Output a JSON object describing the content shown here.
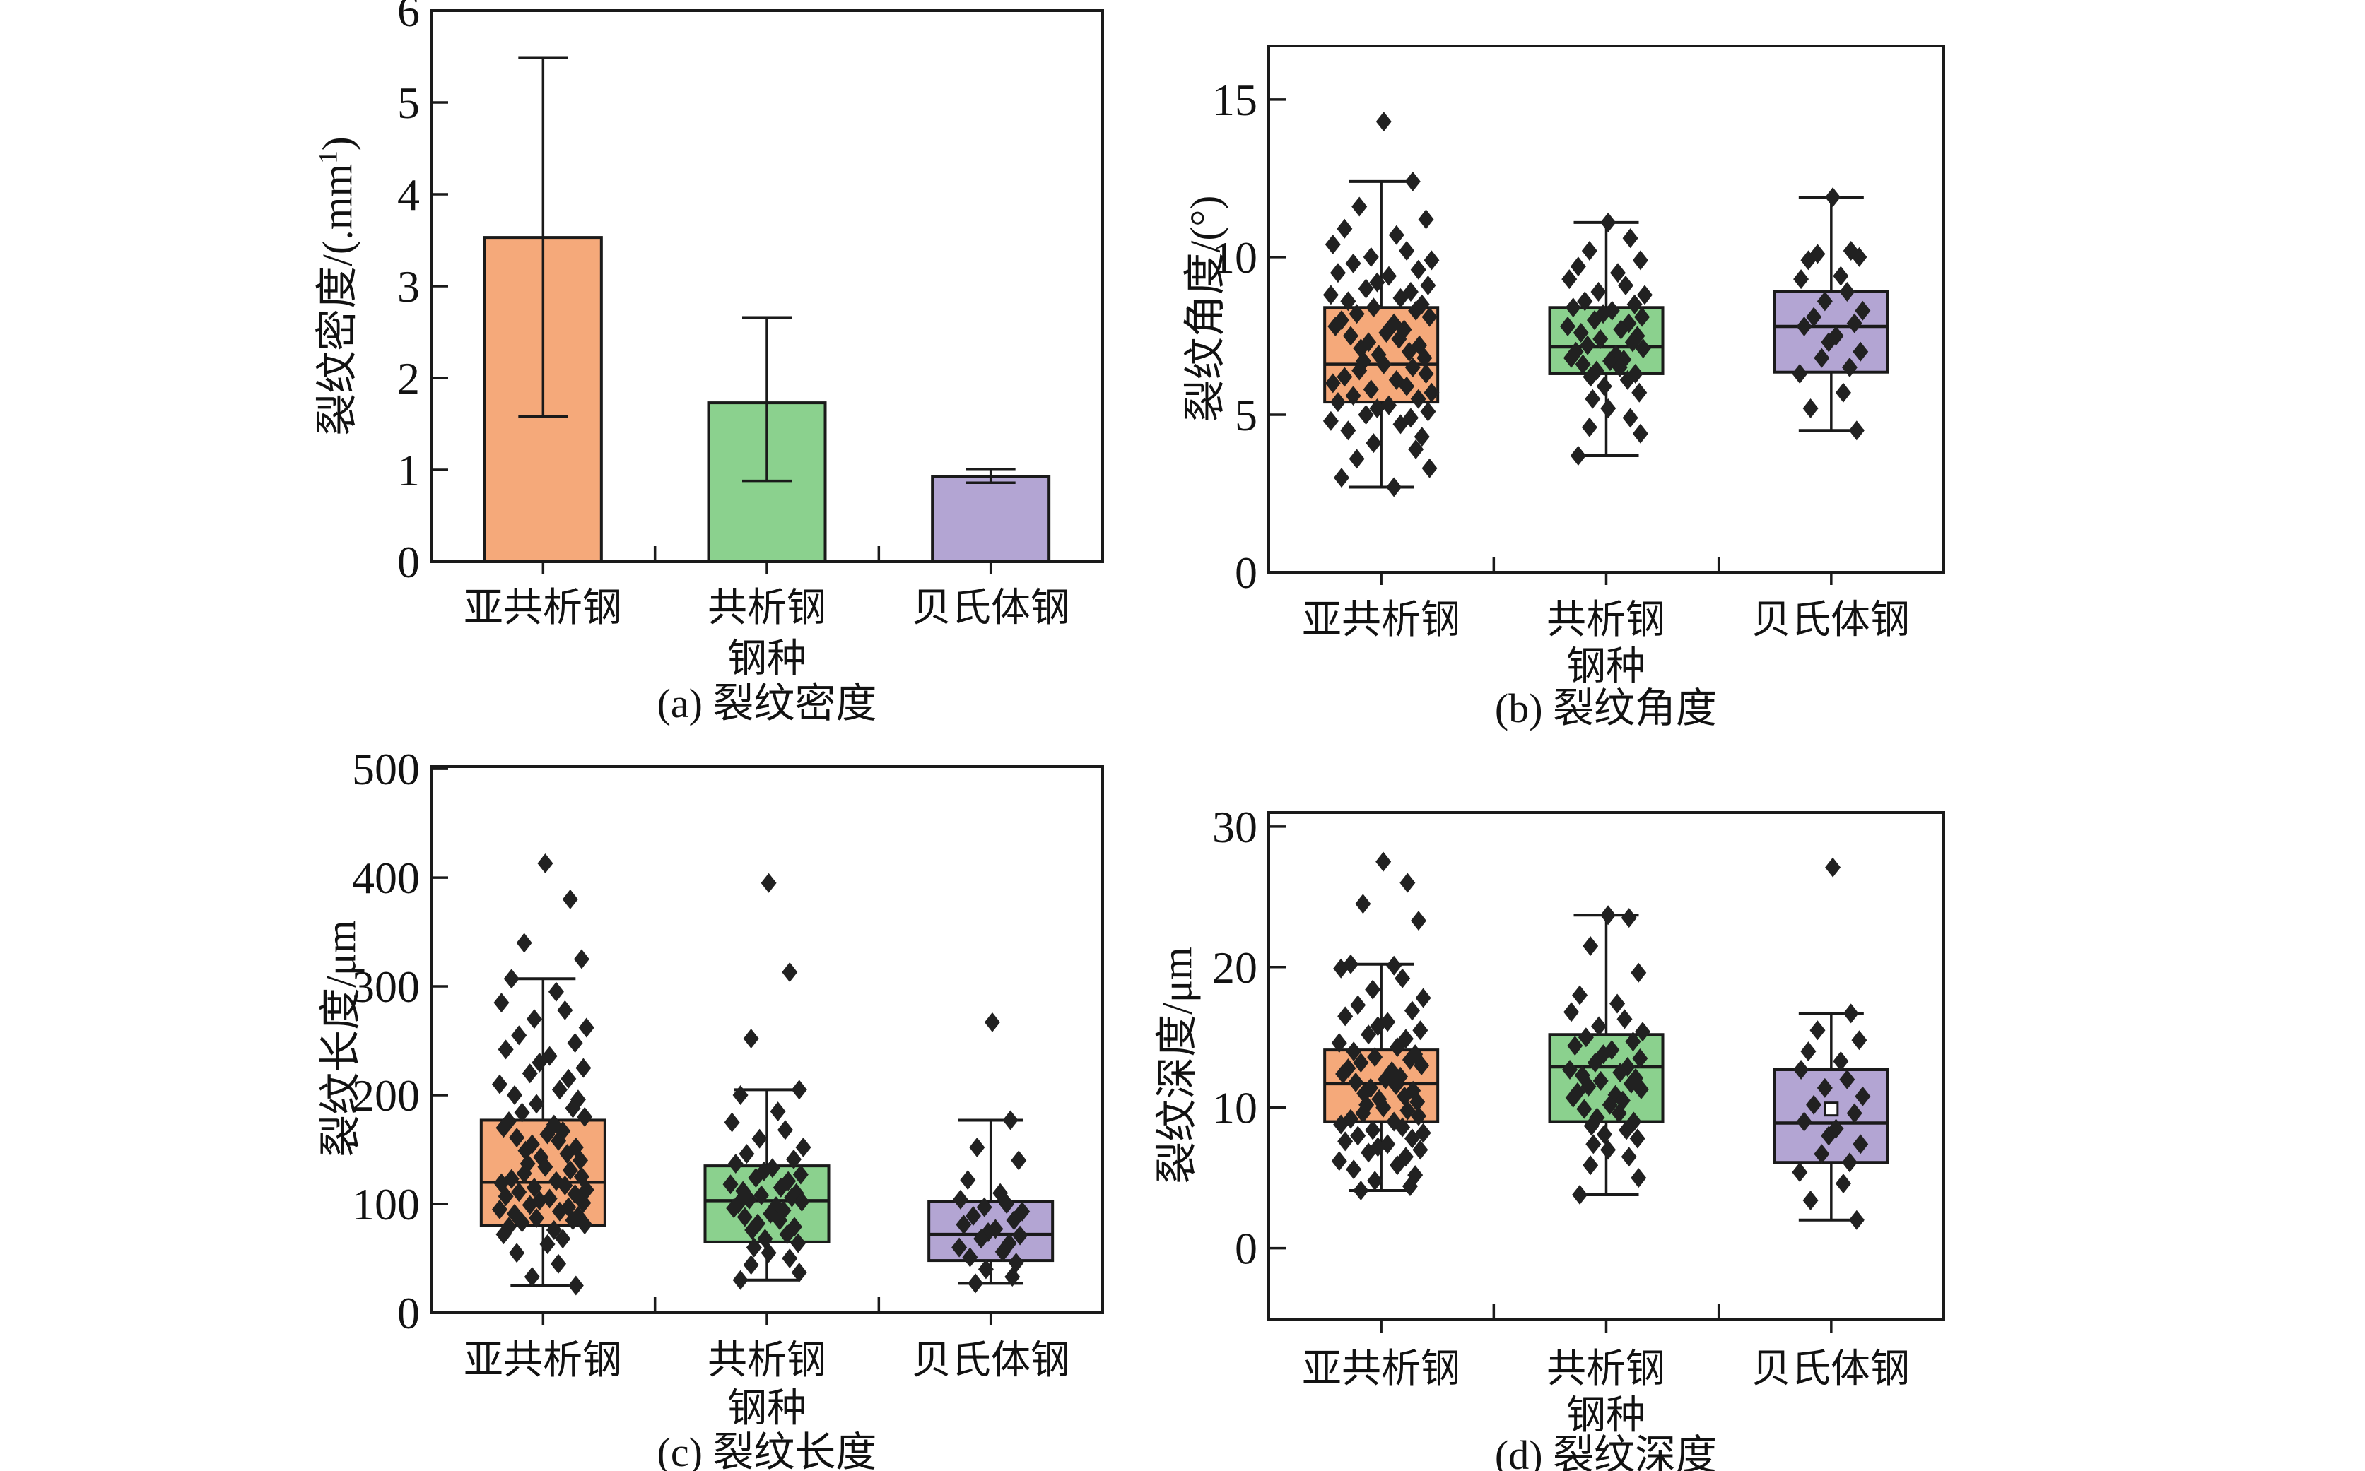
{
  "figure": {
    "background": "#ffffff"
  },
  "palette": {
    "series_fills": [
      "#F5A97A",
      "#8BD18E",
      "#B3A5D3"
    ],
    "line_color": "#1a1a1a",
    "marker_color": "#212121"
  },
  "categories": [
    "亚共析钢",
    "共析钢",
    "贝氏体钢"
  ],
  "xlabel": "钢种",
  "chart_data": [
    {
      "id": "a",
      "type": "bar",
      "caption": "(a) 裂纹密度",
      "ylabel_prefix": "裂纹密度/(.mm",
      "ylabel_sup": "1",
      "ylabel_suffix": ")",
      "categories": [
        "亚共析钢",
        "共析钢",
        "贝氏体钢"
      ],
      "values": [
        3.53,
        1.73,
        0.93
      ],
      "error_low": [
        1.58,
        0.88,
        0.86
      ],
      "error_high": [
        5.49,
        2.66,
        1.01
      ],
      "ylim": [
        0,
        6
      ],
      "yticks": [
        0,
        1,
        2,
        3,
        4,
        5,
        6
      ],
      "grid": false,
      "legend": "none"
    },
    {
      "id": "b",
      "type": "box",
      "caption": "(b) 裂纹角度",
      "ylabel": "裂纹角度/(°)",
      "ylim": [
        0,
        16.7
      ],
      "yticks": [
        0,
        5,
        10,
        15
      ],
      "grid": false,
      "legend": "none",
      "boxes": [
        {
          "category": "亚共析钢",
          "q1": 5.4,
          "median": 6.6,
          "q3": 8.4,
          "whisker_low": 2.7,
          "whisker_high": 12.4,
          "points": [
            14.3,
            12.4,
            11.6,
            11.2,
            10.9,
            10.7,
            10.4,
            10.2,
            10.0,
            9.9,
            9.8,
            9.6,
            9.5,
            9.4,
            9.2,
            9.1,
            9.0,
            8.9,
            8.8,
            8.7,
            8.6,
            8.5,
            8.4,
            8.3,
            8.2,
            8.1,
            8.0,
            7.9,
            7.8,
            7.7,
            7.6,
            7.5,
            7.4,
            7.3,
            7.2,
            7.1,
            7.0,
            6.9,
            6.8,
            6.7,
            6.6,
            6.5,
            6.4,
            6.3,
            6.2,
            6.1,
            6.0,
            5.9,
            5.8,
            5.7,
            5.6,
            5.5,
            5.4,
            5.3,
            5.2,
            5.1,
            5.0,
            4.9,
            4.8,
            4.7,
            4.5,
            4.3,
            4.1,
            3.9,
            3.6,
            3.3,
            3.0,
            2.7
          ]
        },
        {
          "category": "共析钢",
          "q1": 6.3,
          "median": 7.15,
          "q3": 8.4,
          "whisker_low": 3.7,
          "whisker_high": 11.1,
          "points": [
            11.1,
            10.6,
            10.2,
            9.9,
            9.7,
            9.5,
            9.3,
            9.1,
            8.9,
            8.8,
            8.6,
            8.5,
            8.4,
            8.3,
            8.2,
            8.1,
            8.0,
            7.9,
            7.8,
            7.7,
            7.6,
            7.5,
            7.4,
            7.3,
            7.2,
            7.1,
            7.0,
            6.9,
            6.8,
            6.75,
            6.7,
            6.6,
            6.5,
            6.4,
            6.3,
            6.2,
            6.1,
            5.9,
            5.7,
            5.5,
            5.2,
            4.9,
            4.6,
            4.4,
            3.7
          ]
        },
        {
          "category": "贝氏体钢",
          "q1": 6.35,
          "median": 7.8,
          "q3": 8.9,
          "whisker_low": 4.5,
          "whisker_high": 11.9,
          "points": [
            11.9,
            10.2,
            10.1,
            10.0,
            9.9,
            9.4,
            9.3,
            8.9,
            8.6,
            8.3,
            8.1,
            7.9,
            7.8,
            7.5,
            7.3,
            7.0,
            6.8,
            6.5,
            6.3,
            5.7,
            5.2,
            4.5
          ]
        }
      ]
    },
    {
      "id": "c",
      "type": "box",
      "caption": "(c) 裂纹长度",
      "ylabel": "裂纹长度/μm",
      "ylim": [
        0,
        502
      ],
      "yticks": [
        0,
        100,
        200,
        300,
        400,
        500
      ],
      "grid": false,
      "legend": "none",
      "boxes": [
        {
          "category": "亚共析钢",
          "q1": 80,
          "median": 120,
          "q3": 177,
          "whisker_low": 25,
          "whisker_high": 307,
          "points": [
            413,
            380,
            340,
            325,
            307,
            295,
            285,
            278,
            270,
            262,
            255,
            248,
            242,
            236,
            230,
            225,
            220,
            215,
            210,
            205,
            200,
            196,
            192,
            188,
            184,
            180,
            176,
            173,
            170,
            167,
            164,
            161,
            158,
            155,
            152,
            149,
            146,
            143,
            140,
            137,
            134,
            131,
            128,
            125,
            123,
            121,
            119,
            117,
            115,
            113,
            111,
            109,
            107,
            105,
            103,
            101,
            99,
            97,
            95,
            93,
            91,
            89,
            87,
            85,
            83,
            81,
            79,
            76,
            72,
            68,
            63,
            55,
            45,
            33,
            25
          ]
        },
        {
          "category": "共析钢",
          "q1": 65,
          "median": 103,
          "q3": 135,
          "whisker_low": 30,
          "whisker_high": 205,
          "points": [
            395,
            313,
            252,
            205,
            200,
            185,
            175,
            168,
            160,
            152,
            146,
            141,
            137,
            133,
            130,
            127,
            124,
            121,
            118,
            115,
            112,
            110,
            108,
            106,
            104,
            102,
            100,
            98,
            96,
            94,
            91,
            88,
            85,
            82,
            79,
            76,
            72,
            68,
            64,
            60,
            55,
            50,
            44,
            37,
            30
          ]
        },
        {
          "category": "贝氏体钢",
          "q1": 48,
          "median": 72,
          "q3": 102,
          "whisker_low": 27,
          "whisker_high": 177,
          "points": [
            267,
            177,
            152,
            140,
            122,
            110,
            104,
            100,
            97,
            93,
            89,
            85,
            81,
            77,
            74,
            71,
            68,
            64,
            60,
            56,
            51,
            46,
            40,
            33,
            27
          ]
        }
      ]
    },
    {
      "id": "d",
      "type": "box",
      "caption": "(d) 裂纹深度",
      "ylabel": "裂纹深度/μm",
      "ylim": [
        -5.1,
        31.0
      ],
      "yticks": [
        0,
        10,
        20,
        30
      ],
      "grid": false,
      "legend": "none",
      "boxes": [
        {
          "category": "亚共析钢",
          "q1": 9.0,
          "median": 11.7,
          "q3": 14.1,
          "whisker_low": 4.1,
          "whisker_high": 20.2,
          "points": [
            27.5,
            26.0,
            24.5,
            23.3,
            20.2,
            20.1,
            19.9,
            19.2,
            18.4,
            17.8,
            17.3,
            16.9,
            16.5,
            16.1,
            15.8,
            15.5,
            15.2,
            14.9,
            14.6,
            14.3,
            14.0,
            13.8,
            13.6,
            13.4,
            13.2,
            13.0,
            12.8,
            12.6,
            12.4,
            12.2,
            12.0,
            11.8,
            11.6,
            11.4,
            11.2,
            11.0,
            10.8,
            10.6,
            10.4,
            10.2,
            10.0,
            9.8,
            9.6,
            9.4,
            9.2,
            9.0,
            8.8,
            8.6,
            8.4,
            8.2,
            8.0,
            7.8,
            7.6,
            7.4,
            7.2,
            7.0,
            6.8,
            6.5,
            6.2,
            5.9,
            5.6,
            5.2,
            4.8,
            4.4,
            4.1
          ]
        },
        {
          "category": "共析钢",
          "q1": 9.0,
          "median": 12.9,
          "q3": 15.2,
          "whisker_low": 3.8,
          "whisker_high": 23.7,
          "points": [
            23.7,
            23.5,
            21.5,
            19.6,
            18.0,
            17.4,
            16.8,
            16.3,
            15.8,
            15.4,
            15.0,
            14.7,
            14.4,
            14.1,
            13.8,
            13.5,
            13.2,
            12.9,
            12.7,
            12.5,
            12.3,
            12.1,
            11.9,
            11.7,
            11.5,
            11.3,
            11.1,
            10.9,
            10.7,
            10.5,
            10.2,
            9.9,
            9.6,
            9.3,
            9.0,
            8.7,
            8.4,
            8.1,
            7.8,
            7.4,
            7.0,
            6.5,
            5.9,
            5.0,
            3.8
          ]
        },
        {
          "category": "贝氏体钢",
          "q1": 6.1,
          "median": 8.9,
          "q3": 12.7,
          "whisker_low": 2.0,
          "whisker_high": 16.7,
          "mean": 9.9,
          "points": [
            27.1,
            16.7,
            15.5,
            14.8,
            14.0,
            13.3,
            12.7,
            12.0,
            11.4,
            10.8,
            10.2,
            9.6,
            9.0,
            8.5,
            8.0,
            7.4,
            6.7,
            6.1,
            5.4,
            4.6,
            3.4,
            2.0
          ]
        }
      ]
    }
  ]
}
